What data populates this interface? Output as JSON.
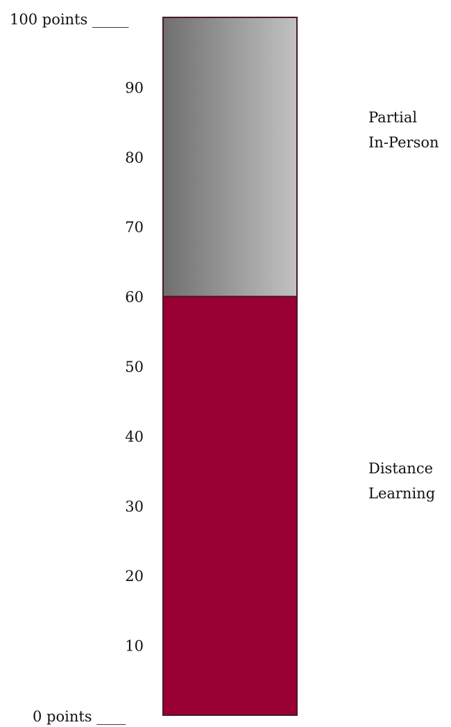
{
  "scale": {
    "min": 0,
    "max": 100,
    "top_label": "100 points _____",
    "bottom_label": "0 points ____",
    "ticks": [
      {
        "value": 90,
        "label": "90"
      },
      {
        "value": 80,
        "label": "80"
      },
      {
        "value": 70,
        "label": "70"
      },
      {
        "value": 60,
        "label": "60"
      },
      {
        "value": 50,
        "label": "50"
      },
      {
        "value": 40,
        "label": "40"
      },
      {
        "value": 30,
        "label": "30"
      },
      {
        "value": 20,
        "label": "20"
      },
      {
        "value": 10,
        "label": "10"
      }
    ]
  },
  "segments": [
    {
      "from": 0,
      "to": 60,
      "label_lines": [
        "Distance",
        "Learning"
      ],
      "color": "#990033"
    },
    {
      "from": 60,
      "to": 100,
      "label_lines": [
        "Partial",
        "In-Person"
      ],
      "color_dark": "#6f6f6f",
      "color_light": "#c2c2c2"
    }
  ],
  "colors": {
    "border": "#4a1a22"
  }
}
